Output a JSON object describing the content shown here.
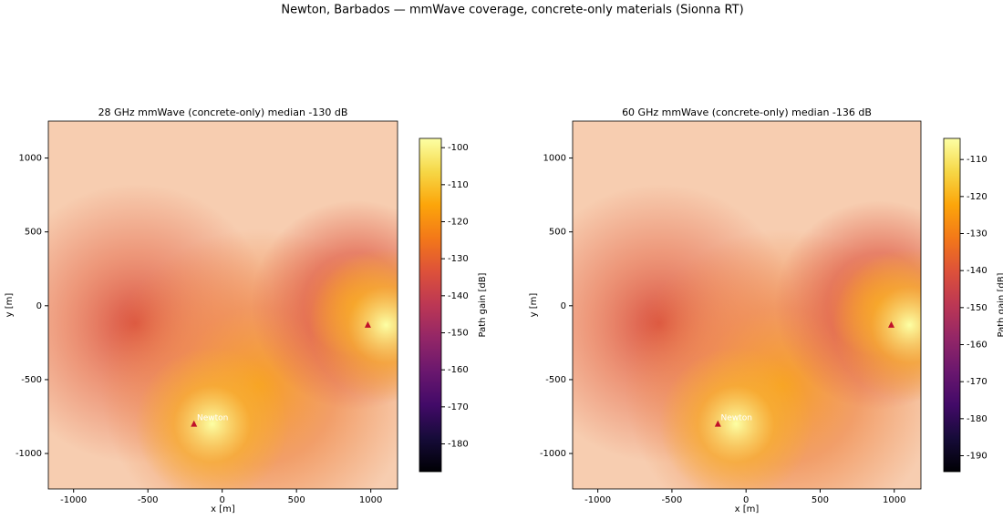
{
  "title": "Newton, Barbados — mmWave coverage, concrete-only materials (Sionna RT)",
  "chart_data": [
    {
      "type": "heatmap",
      "title": "28 GHz mmWave (concrete-only)  median -130 dB",
      "xlabel": "x [m]",
      "ylabel": "y [m]",
      "xlim": [
        -1170,
        1180
      ],
      "ylim": [
        -1240,
        1250
      ],
      "xticks": [
        -1000,
        -500,
        0,
        500,
        1000
      ],
      "yticks": [
        -1000,
        -500,
        0,
        500,
        1000
      ],
      "colorbar": {
        "label": "Path gain [dB]",
        "colormap": "inferno",
        "lim": [
          -187.5,
          -97.5
        ],
        "ticks": [
          -180,
          -170,
          -160,
          -150,
          -140,
          -130,
          -120,
          -110,
          -100
        ]
      },
      "transmitters": [
        {
          "x": 980,
          "y": -130,
          "color": "#c0102a"
        },
        {
          "x": -190,
          "y": -800,
          "color": "#c0102a"
        }
      ],
      "annotations": [
        {
          "text": "Newton",
          "x": -170,
          "y": -760
        }
      ]
    },
    {
      "type": "heatmap",
      "title": "60 GHz mmWave (concrete-only)  median -136 dB",
      "xlabel": "x [m]",
      "ylabel": "y [m]",
      "xlim": [
        -1170,
        1180
      ],
      "ylim": [
        -1240,
        1250
      ],
      "xticks": [
        -1000,
        -500,
        0,
        500,
        1000
      ],
      "yticks": [
        -1000,
        -500,
        0,
        500,
        1000
      ],
      "colorbar": {
        "label": "Path gain [dB]",
        "colormap": "inferno",
        "lim": [
          -194.3,
          -104.3
        ],
        "ticks": [
          -190,
          -180,
          -170,
          -160,
          -150,
          -140,
          -130,
          -120,
          -110
        ]
      },
      "transmitters": [
        {
          "x": 980,
          "y": -130,
          "color": "#c0102a"
        },
        {
          "x": -190,
          "y": -800,
          "color": "#c0102a"
        }
      ],
      "annotations": [
        {
          "text": "Newton",
          "x": -170,
          "y": -760
        }
      ]
    }
  ]
}
